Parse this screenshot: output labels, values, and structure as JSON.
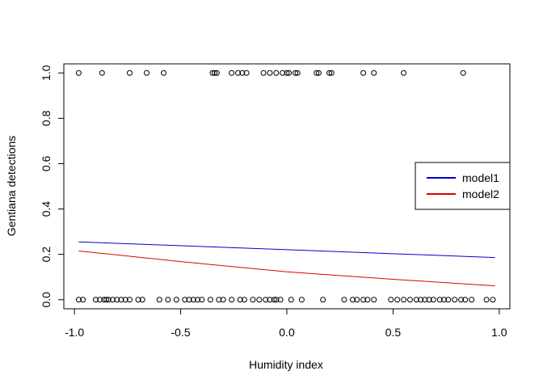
{
  "chart_data": {
    "type": "scatter",
    "title": "",
    "xlabel": "Humidity index",
    "ylabel": "Gentiana detections",
    "xlim": [
      -1.05,
      1.05
    ],
    "ylim": [
      -0.04,
      1.04
    ],
    "xticks": [
      -1.0,
      -0.5,
      0.0,
      0.5,
      1.0
    ],
    "xtick_labels": [
      "-1.0",
      "-0.5",
      "0.0",
      "0.5",
      "1.0"
    ],
    "yticks": [
      0.0,
      0.2,
      0.4,
      0.6,
      0.8,
      1.0
    ],
    "ytick_labels": [
      "0.0",
      "0.2",
      "0.4",
      "0.6",
      "0.8",
      "1.0"
    ],
    "grid": false,
    "legend_position": "right",
    "points": {
      "name": "",
      "marker": "open-circle",
      "color": "#000000",
      "x_at_1": [
        -0.98,
        -0.87,
        -0.74,
        -0.66,
        -0.58,
        -0.35,
        -0.34,
        -0.33,
        -0.26,
        -0.23,
        -0.21,
        -0.19,
        -0.11,
        -0.08,
        -0.05,
        -0.02,
        0.0,
        0.01,
        0.04,
        0.05,
        0.14,
        0.15,
        0.2,
        0.21,
        0.36,
        0.41,
        0.55,
        0.83
      ],
      "x_at_0": [
        -0.98,
        -0.96,
        -0.9,
        -0.88,
        -0.86,
        -0.85,
        -0.84,
        -0.82,
        -0.8,
        -0.78,
        -0.76,
        -0.74,
        -0.7,
        -0.68,
        -0.6,
        -0.56,
        -0.52,
        -0.48,
        -0.46,
        -0.44,
        -0.42,
        -0.4,
        -0.36,
        -0.32,
        -0.3,
        -0.26,
        -0.22,
        -0.2,
        -0.16,
        -0.13,
        -0.1,
        -0.08,
        -0.06,
        -0.05,
        -0.03,
        0.02,
        0.07,
        0.17,
        0.27,
        0.31,
        0.33,
        0.36,
        0.38,
        0.41,
        0.49,
        0.52,
        0.55,
        0.58,
        0.61,
        0.63,
        0.65,
        0.67,
        0.69,
        0.72,
        0.74,
        0.76,
        0.79,
        0.82,
        0.84,
        0.87,
        0.94,
        0.97
      ]
    },
    "series": [
      {
        "name": "model1",
        "color": "#0000cc",
        "x": [
          -0.98,
          0.98
        ],
        "y": [
          0.255,
          0.186
        ]
      },
      {
        "name": "model2",
        "color": "#dd0000",
        "x": [
          -0.98,
          -0.5,
          0.0,
          0.5,
          0.98
        ],
        "y": [
          0.215,
          0.168,
          0.123,
          0.09,
          0.061
        ]
      }
    ]
  }
}
